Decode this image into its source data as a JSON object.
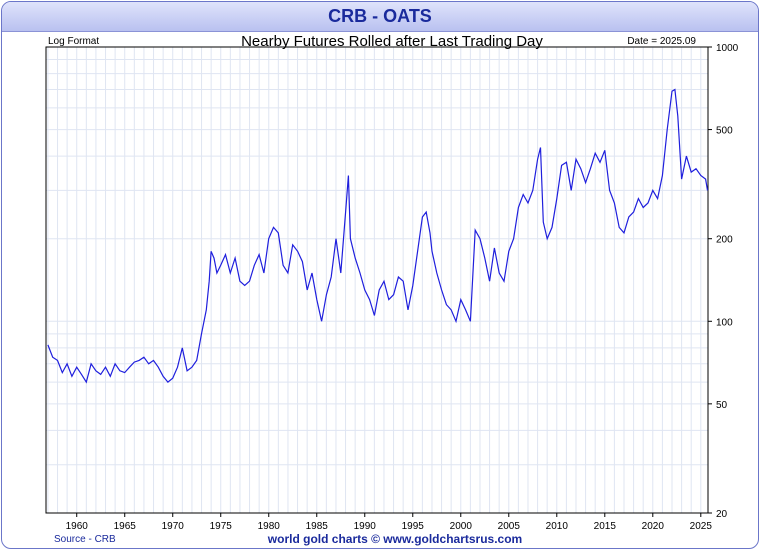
{
  "chart_data": {
    "type": "line",
    "title": "CRB - OATS",
    "subtitle": "Nearby Futures Rolled after Last Trading Day",
    "scale_note": "Log Format",
    "date_note": "Date = 2025.09",
    "source": "Source - CRB",
    "footer": "world gold charts © www.goldchartsrus.com",
    "yscale": "log",
    "ylim": [
      20,
      1000
    ],
    "y_ticks": [
      1000,
      500,
      200,
      100,
      50,
      20
    ],
    "xlim": [
      1956.8,
      2025.75
    ],
    "x_ticks": [
      1960,
      1965,
      1970,
      1975,
      1980,
      1985,
      1990,
      1995,
      2000,
      2005,
      2010,
      2015,
      2020,
      2025
    ],
    "grid": true,
    "line_color": "#1f1fdd",
    "series": [
      {
        "x": [
          1957.0,
          1957.5,
          1958.0,
          1958.5,
          1959.0,
          1959.5,
          1960.0,
          1960.5,
          1961.0,
          1961.5,
          1962.0,
          1962.5,
          1963.0,
          1963.5,
          1964.0,
          1964.5,
          1965.0,
          1965.5,
          1966.0,
          1966.5,
          1967.0,
          1967.5,
          1968.0,
          1968.5,
          1969.0,
          1969.5,
          1970.0,
          1970.5,
          1971.0,
          1971.5,
          1972.0,
          1972.5,
          1973.0,
          1973.5,
          1973.8,
          1974.0,
          1974.3,
          1974.6,
          1975.0,
          1975.5,
          1976.0,
          1976.5,
          1977.0,
          1977.5,
          1978.0,
          1978.5,
          1979.0,
          1979.5,
          1980.0,
          1980.5,
          1981.0,
          1981.5,
          1982.0,
          1982.5,
          1983.0,
          1983.5,
          1984.0,
          1984.5,
          1985.0,
          1985.5,
          1986.0,
          1986.5,
          1987.0,
          1987.5,
          1988.0,
          1988.3,
          1988.5,
          1989.0,
          1989.5,
          1990.0,
          1990.5,
          1991.0,
          1991.5,
          1992.0,
          1992.5,
          1993.0,
          1993.5,
          1994.0,
          1994.5,
          1995.0,
          1995.5,
          1996.0,
          1996.4,
          1996.8,
          1997.0,
          1997.5,
          1998.0,
          1998.5,
          1999.0,
          1999.5,
          2000.0,
          2000.5,
          2001.0,
          2001.5,
          2002.0,
          2002.5,
          2003.0,
          2003.5,
          2004.0,
          2004.5,
          2005.0,
          2005.5,
          2006.0,
          2006.5,
          2007.0,
          2007.5,
          2008.0,
          2008.3,
          2008.6,
          2009.0,
          2009.5,
          2010.0,
          2010.5,
          2011.0,
          2011.5,
          2012.0,
          2012.5,
          2013.0,
          2013.5,
          2014.0,
          2014.5,
          2015.0,
          2015.5,
          2016.0,
          2016.5,
          2017.0,
          2017.5,
          2018.0,
          2018.5,
          2019.0,
          2019.5,
          2020.0,
          2020.5,
          2021.0,
          2021.5,
          2022.0,
          2022.3,
          2022.6,
          2023.0,
          2023.5,
          2024.0,
          2024.5,
          2025.0,
          2025.5,
          2025.7
        ],
        "y": [
          82,
          74,
          72,
          65,
          70,
          63,
          68,
          64,
          60,
          70,
          66,
          64,
          68,
          63,
          70,
          66,
          65,
          68,
          71,
          72,
          74,
          70,
          72,
          68,
          63,
          60,
          62,
          68,
          80,
          66,
          68,
          72,
          90,
          110,
          140,
          180,
          170,
          150,
          160,
          175,
          150,
          170,
          140,
          135,
          140,
          160,
          175,
          150,
          200,
          220,
          210,
          160,
          150,
          190,
          180,
          165,
          130,
          150,
          120,
          100,
          125,
          145,
          200,
          150,
          250,
          340,
          200,
          170,
          150,
          130,
          120,
          105,
          130,
          140,
          120,
          125,
          145,
          140,
          110,
          135,
          180,
          240,
          250,
          210,
          180,
          150,
          130,
          115,
          110,
          100,
          120,
          110,
          100,
          215,
          200,
          170,
          140,
          185,
          150,
          140,
          180,
          200,
          260,
          290,
          270,
          300,
          390,
          430,
          230,
          200,
          220,
          280,
          370,
          380,
          300,
          390,
          360,
          320,
          360,
          410,
          380,
          420,
          300,
          270,
          220,
          210,
          240,
          250,
          280,
          260,
          270,
          300,
          280,
          340,
          500,
          690,
          700,
          560,
          330,
          400,
          350,
          360,
          340,
          330,
          300
        ]
      }
    ]
  }
}
